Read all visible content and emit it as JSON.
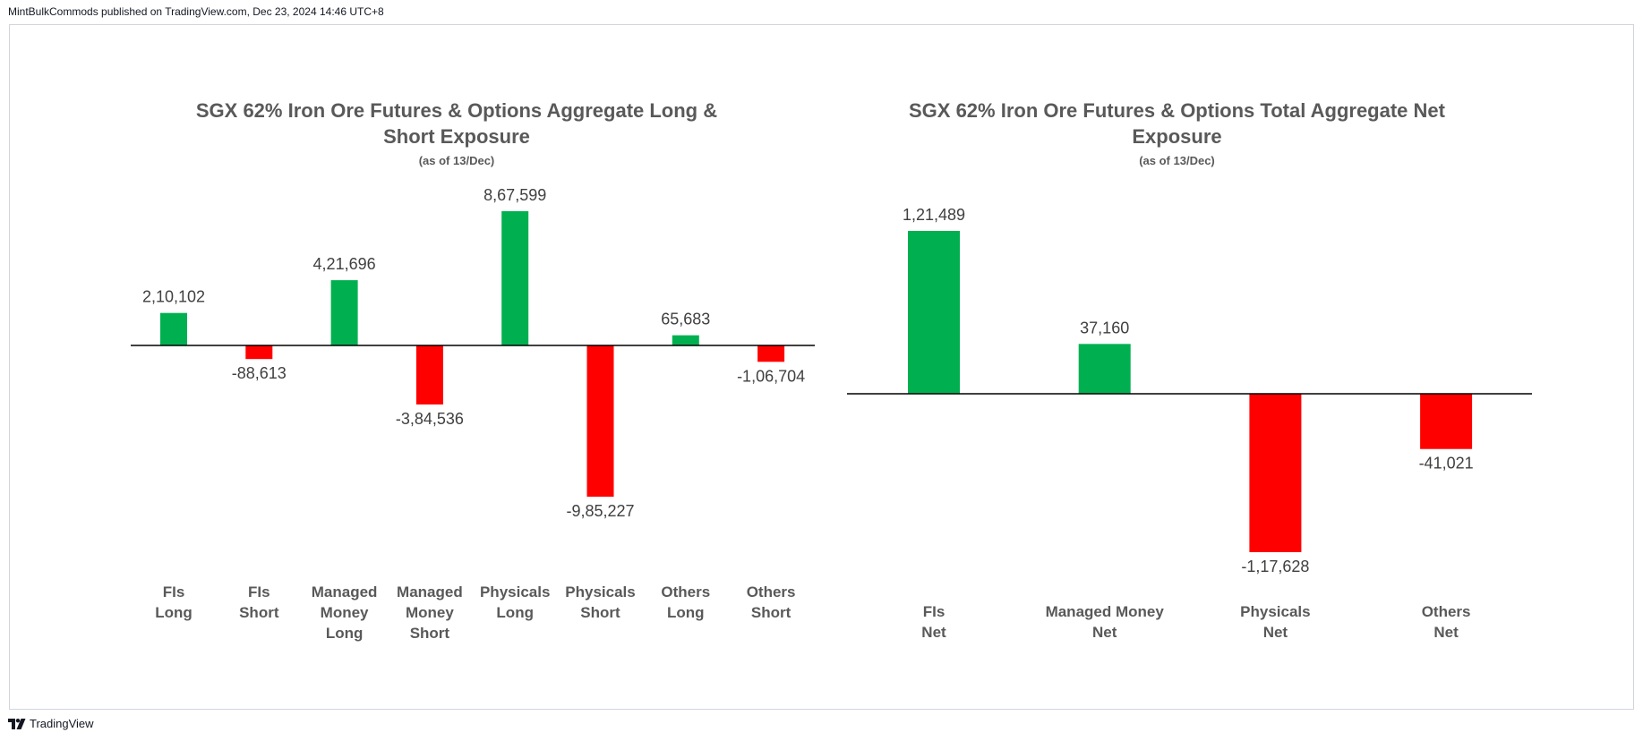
{
  "header": {
    "publisher": "MintBulkCommods published on TradingView.com, Dec 23, 2024 14:46 UTC+8"
  },
  "footer": {
    "brand": "TradingView"
  },
  "colors": {
    "positive": "#00B050",
    "negative": "#FF0000",
    "title": "#595959",
    "label": "#404040",
    "axis": "#000000"
  },
  "chart_data": [
    {
      "type": "bar",
      "title": "SGX 62% Iron Ore Futures & Options Aggregate Long & Short Exposure",
      "title_lines": [
        "SGX 62% Iron Ore Futures & Options Aggregate Long &",
        "Short Exposure"
      ],
      "subtitle": "(as of 13/Dec)",
      "categories": [
        "FIs Long",
        "FIs Short",
        "Managed Money Long",
        "Managed Money Short",
        "Physicals Long",
        "Physicals Short",
        "Others Long",
        "Others Short"
      ],
      "category_lines": [
        [
          "FIs",
          "Long"
        ],
        [
          "FIs",
          "Short"
        ],
        [
          "Managed",
          "Money",
          "Long"
        ],
        [
          "Managed",
          "Money",
          "Short"
        ],
        [
          "Physicals",
          "Long"
        ],
        [
          "Physicals",
          "Short"
        ],
        [
          "Others",
          "Long"
        ],
        [
          "Others",
          "Short"
        ]
      ],
      "values": [
        210102,
        -88613,
        421696,
        -384536,
        867599,
        -985227,
        65683,
        -106704
      ],
      "value_labels": [
        "2,10,102",
        "-88,613",
        "4,21,696",
        "-3,84,536",
        "8,67,599",
        "-9,85,227",
        "65,683",
        "-1,06,704"
      ],
      "xlabel": "",
      "ylabel": "",
      "ylim": [
        -985227,
        867599
      ],
      "grid": false,
      "legend": "none"
    },
    {
      "type": "bar",
      "title": "SGX 62% Iron Ore Futures & Options Total Aggregate Net Exposure",
      "title_lines": [
        "SGX 62% Iron Ore Futures & Options Total Aggregate Net",
        "Exposure"
      ],
      "subtitle": "(as of 13/Dec)",
      "categories": [
        "FIs Net",
        "Managed Money Net",
        "Physicals Net",
        "Others Net"
      ],
      "category_lines": [
        [
          "FIs",
          "Net"
        ],
        [
          "Managed Money",
          "Net"
        ],
        [
          "Physicals",
          "Net"
        ],
        [
          "Others",
          "Net"
        ]
      ],
      "values": [
        121489,
        37160,
        -117628,
        -41021
      ],
      "value_labels": [
        "1,21,489",
        "37,160",
        "-1,17,628",
        "-41,021"
      ],
      "xlabel": "",
      "ylabel": "",
      "ylim": [
        -117628,
        121489
      ],
      "grid": false,
      "legend": "none"
    }
  ]
}
